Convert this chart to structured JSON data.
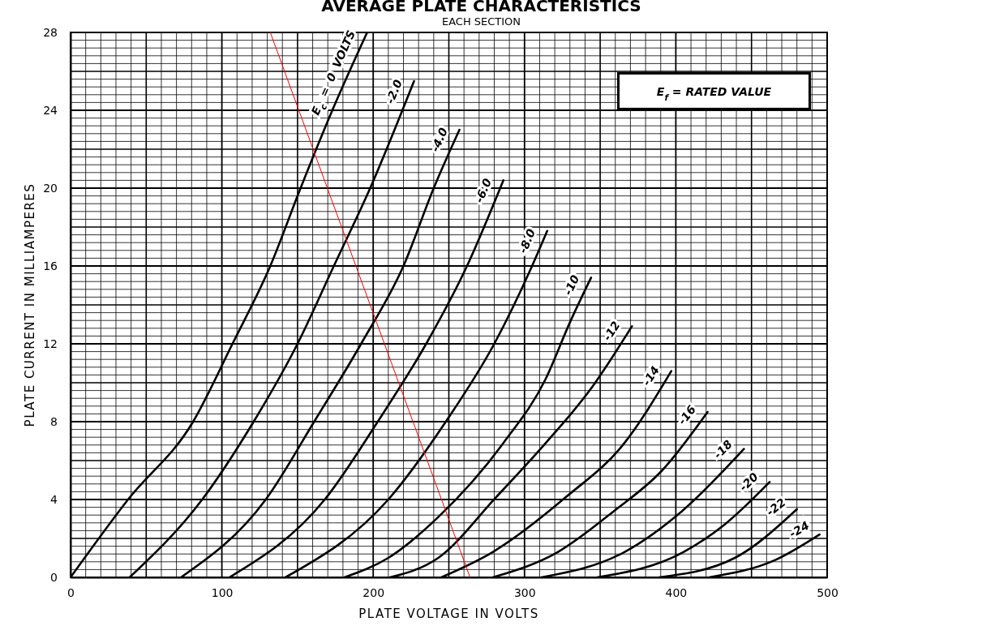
{
  "chart_data": {
    "type": "line",
    "title": "AVERAGE PLATE CHARACTERISTICS",
    "subtitle": "EACH SECTION",
    "xlabel": "PLATE VOLTAGE IN VOLTS",
    "ylabel": "PLATE CURRENT IN MILLIAMPERES",
    "xlim": [
      0,
      500
    ],
    "ylim": [
      0,
      28
    ],
    "xticks": [
      0,
      100,
      200,
      300,
      400,
      500
    ],
    "yticks": [
      0,
      4,
      8,
      12,
      16,
      20,
      24,
      28
    ],
    "grid": true,
    "series": [
      {
        "name": "E$_{c}$ = 0 VOLTS",
        "color": "#000000",
        "x": [
          0,
          38,
          81,
          107,
          132,
          152,
          173,
          196
        ],
        "values": [
          0,
          4,
          8,
          12,
          16,
          20,
          24,
          28
        ]
      },
      {
        "name": "-2.0",
        "color": "#000000",
        "x": [
          39,
          87,
          121,
          150,
          174,
          198,
          227
        ],
        "values": [
          0,
          4,
          8,
          12,
          16,
          20,
          25.5
        ]
      },
      {
        "name": "-4.0",
        "color": "#000000",
        "x": [
          73,
          129,
          161,
          192,
          220,
          240,
          257
        ],
        "values": [
          0,
          4,
          8,
          12,
          16,
          20,
          23
        ]
      },
      {
        "name": "-6.0",
        "color": "#000000",
        "x": [
          105,
          168,
          203,
          235,
          262,
          286
        ],
        "values": [
          0,
          4,
          8,
          12,
          16,
          20.4
        ]
      },
      {
        "name": "-8.0",
        "color": "#000000",
        "x": [
          142,
          210,
          248,
          280,
          305,
          315
        ],
        "values": [
          0,
          4,
          8,
          12,
          16,
          17.8
        ]
      },
      {
        "name": "-10",
        "color": "#000000",
        "x": [
          181,
          210,
          243,
          286,
          314,
          330,
          344
        ],
        "values": [
          0,
          1,
          3.1,
          6.9,
          10.2,
          13.1,
          15.4
        ]
      },
      {
        "name": "-12",
        "color": "#000000",
        "x": [
          211,
          243,
          281,
          314,
          343,
          371
        ],
        "values": [
          0,
          1,
          4.1,
          6.9,
          9.6,
          12.9
        ]
      },
      {
        "name": "-14",
        "color": "#000000",
        "x": [
          245,
          279,
          327,
          366,
          397
        ],
        "values": [
          0,
          1.3,
          4.1,
          6.9,
          10.6
        ]
      },
      {
        "name": "-16",
        "color": "#000000",
        "x": [
          279,
          322,
          359,
          391,
          421
        ],
        "values": [
          0,
          1.3,
          3.4,
          5.5,
          8.5
        ]
      },
      {
        "name": "-18",
        "color": "#000000",
        "x": [
          311,
          366,
          404,
          445
        ],
        "values": [
          0,
          1.3,
          3.4,
          6.6
        ]
      },
      {
        "name": "-20",
        "color": "#000000",
        "x": [
          348,
          405,
          432,
          462
        ],
        "values": [
          0,
          1.3,
          2.7,
          4.9
        ]
      },
      {
        "name": "-22",
        "color": "#000000",
        "x": [
          389,
          439,
          480
        ],
        "values": [
          0,
          1,
          3.5
        ]
      },
      {
        "name": "-24",
        "color": "#000000",
        "x": [
          422,
          466,
          495
        ],
        "values": [
          0,
          0.9,
          2.2
        ]
      },
      {
        "color": "#ff0000",
        "x": [
          132,
          264
        ],
        "values": [
          28,
          0
        ]
      }
    ],
    "annotations": [
      "E$_{f}$ = RATED VALUE"
    ]
  }
}
